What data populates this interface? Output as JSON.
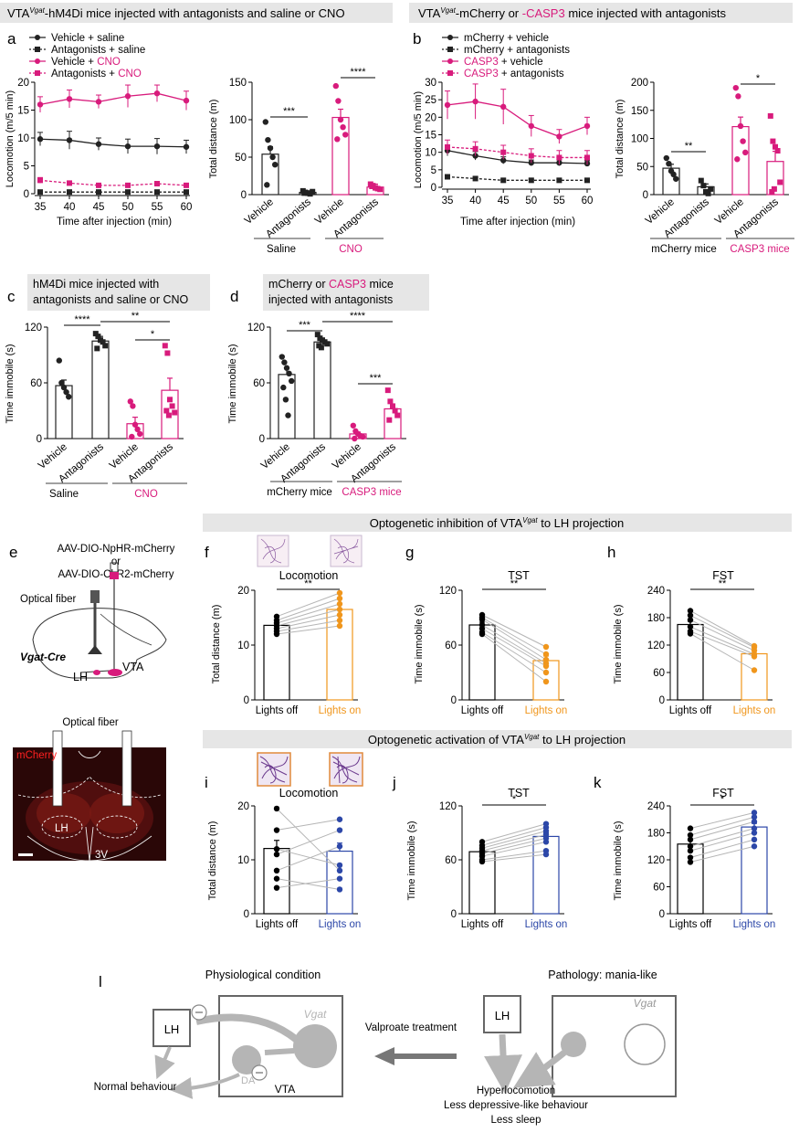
{
  "colors": {
    "magenta": "#d81b7c",
    "orange": "#f0961c",
    "blue": "#2c47a8",
    "grey": "#b5b5b5",
    "banner": "#e6e6e6",
    "dark": "#222222"
  },
  "banners": {
    "top_left_pre": "VTA",
    "top_left_sup": "Vgat",
    "top_left_post": "-hM4Di mice injected with antagonists and saline or CNO",
    "top_right_pre": "VTA",
    "top_right_sup": "Vgat",
    "top_right_mid": "-mCherry or ",
    "top_right_casp": "-CASP3",
    "top_right_post": " mice injected with antagonists",
    "c_line1": "hM4Di mice injected with",
    "c_line2": "antagonists and saline or CNO",
    "d_line1_pre": "mCherry or ",
    "d_line1_casp": "CASP3",
    "d_line1_post": " mice",
    "d_line2": "injected with antagonists",
    "opto_inh_pre": "Optogenetic inhibition of VTA",
    "opto_inh_sup": "Vgat",
    "opto_inh_post": " to LH projection",
    "opto_act_pre": "Optogenetic activation of VTA",
    "opto_act_sup": "Vgat",
    "opto_act_post": " to LH projection"
  },
  "panel_letters": {
    "a": "a",
    "b": "b",
    "c": "c",
    "d": "d",
    "e": "e",
    "f": "f",
    "g": "g",
    "h": "h",
    "i": "i",
    "j": "j",
    "k": "k",
    "l": "l"
  },
  "panel_a": {
    "legend": [
      "Vehicle + saline",
      "Antagonists + saline",
      "Vehicle + ",
      "Antagonists + "
    ],
    "legend_cno": "CNO",
    "ylabel": "Locomotion (m/5 min)",
    "xlabel": "Time after injection (min)",
    "bar_ylabel": "Total distance (m)",
    "bar_labels": [
      "Vehicle",
      "Antagonists",
      "Vehicle",
      "Antagonists"
    ],
    "group1": "Saline",
    "group2": "CNO",
    "sig": [
      "***",
      "****"
    ]
  },
  "panel_b": {
    "legend": [
      "mCherry + vehicle",
      "mCherry + antagonists",
      "CASP3",
      "CASP3"
    ],
    "legend_tail": [
      " + vehicle",
      " + antagonists"
    ],
    "ylabel": "Locomotion (m/5 min)",
    "xlabel": "Time after injection (min)",
    "bar_ylabel": "Total distance (m)",
    "bar_labels": [
      "Vehicle",
      "Antagonists",
      "Vehicle",
      "Antagonists"
    ],
    "group1": "mCherry mice",
    "group2": "CASP3 mice",
    "sig": [
      "**",
      "*"
    ]
  },
  "panel_c": {
    "ylabel": "Time immobile (s)",
    "bar_labels": [
      "Vehicle",
      "Antagonists",
      "Vehicle",
      "Antagonists"
    ],
    "group1": "Saline",
    "group2": "CNO",
    "sig": [
      "****",
      "**",
      "*"
    ]
  },
  "panel_d": {
    "ylabel": "Time immobile (s)",
    "bar_labels": [
      "Vehicle",
      "Antagonists",
      "Vehicle",
      "Antagonists"
    ],
    "group1": "mCherry mice",
    "group2": "CASP3 mice",
    "sig": [
      "***",
      "****",
      "***"
    ]
  },
  "panel_e": {
    "virus1": "AAV-DIO-NpHR-mCherry",
    "or": "or",
    "virus2": "AAV-DIO-ChR2-mCherry",
    "fiber": "Optical fiber",
    "cre": "Vgat-Cre",
    "lh": "LH",
    "vta": "VTA",
    "fiber2": "Optical fiber",
    "mcherry": "mCherry",
    "lh2": "LH",
    "v3": "3V"
  },
  "panel_f": {
    "title": "Locomotion",
    "ylabel": "Total distance (m)",
    "x": [
      "Lights off",
      "Lights on"
    ],
    "sig": "**"
  },
  "panel_g": {
    "title": "TST",
    "ylabel": "Time immobile (s)",
    "x": [
      "Lights off",
      "Lights on"
    ],
    "sig": "**"
  },
  "panel_h": {
    "title": "FST",
    "ylabel": "Time immobile (s)",
    "x": [
      "Lights off",
      "Lights on"
    ],
    "sig": "**"
  },
  "panel_i": {
    "title": "Locomotion",
    "ylabel": "Total distance (m)",
    "x": [
      "Lights off",
      "Lights on"
    ]
  },
  "panel_j": {
    "title": "TST",
    "ylabel": "Time immobile (s)",
    "x": [
      "Lights off",
      "Lights on"
    ],
    "sig": "*"
  },
  "panel_k": {
    "title": "FST",
    "ylabel": "Time immobile (s)",
    "x": [
      "Lights off",
      "Lights on"
    ],
    "sig": "*"
  },
  "panel_l": {
    "phys_title": "Physiological condition",
    "path_title": "Pathology: mania-like",
    "lh": "LH",
    "vgat": "Vgat",
    "da": "DA",
    "vta": "VTA",
    "normal": "Normal behaviour",
    "treatment": "Valproate treatment",
    "lh2": "LH",
    "vgat2": "Vgat",
    "effects": [
      "Hyperlocomotion",
      "Less depressive-like behaviour",
      "Less sleep"
    ]
  },
  "chart_data": [
    {
      "id": "a-line",
      "type": "line",
      "xlabel": "Time after injection (min)",
      "ylabel": "Locomotion (m/5 min)",
      "x": [
        35,
        40,
        45,
        50,
        55,
        60
      ],
      "xlim": [
        35,
        60
      ],
      "ylim": [
        0,
        20
      ],
      "yticks": [
        0,
        5,
        10,
        15,
        20
      ],
      "series": [
        {
          "name": "Vehicle + saline",
          "values": [
            9.8,
            9.6,
            8.9,
            8.5,
            8.5,
            8.4
          ],
          "err": [
            1.2,
            1.6,
            1.1,
            1.3,
            1.4,
            1.2
          ],
          "style": "solid",
          "marker": "circle",
          "color": "#222222"
        },
        {
          "name": "Antagonists + saline",
          "values": [
            0.3,
            0.3,
            0.3,
            0.3,
            0.3,
            0.3
          ],
          "err": [
            0.2,
            0.2,
            0.2,
            0.2,
            0.2,
            0.2
          ],
          "style": "dashed",
          "marker": "square",
          "color": "#222222"
        },
        {
          "name": "Vehicle + CNO",
          "values": [
            16.0,
            17.0,
            16.5,
            17.5,
            18.0,
            16.7
          ],
          "err": [
            1.4,
            1.6,
            1.2,
            2.0,
            1.5,
            1.7
          ],
          "style": "solid",
          "marker": "circle",
          "color": "#d81b7c"
        },
        {
          "name": "Antagonists + CNO",
          "values": [
            2.4,
            1.9,
            1.5,
            1.5,
            1.8,
            1.5
          ],
          "err": [
            0.5,
            0.4,
            0.3,
            0.3,
            0.4,
            0.3
          ],
          "style": "dashed",
          "marker": "square",
          "color": "#d81b7c"
        }
      ]
    },
    {
      "id": "a-bar",
      "type": "bar",
      "ylabel": "Total distance (m)",
      "ylim": [
        0,
        150
      ],
      "yticks": [
        0,
        50,
        100,
        150
      ],
      "categories": [
        "Vehicle",
        "Antagonists",
        "Vehicle",
        "Antagonists"
      ],
      "groups": [
        "Saline",
        "CNO"
      ],
      "values": [
        54,
        3,
        103,
        10
      ],
      "err": [
        10,
        2,
        11,
        4
      ],
      "points": [
        [
          97,
          73,
          62,
          50,
          40,
          13
        ],
        [
          5,
          3,
          2,
          1,
          4,
          2
        ],
        [
          145,
          125,
          100,
          90,
          80,
          74
        ],
        [
          14,
          12,
          9,
          8,
          7,
          11
        ]
      ]
    },
    {
      "id": "b-line",
      "type": "line",
      "xlabel": "Time after injection (min)",
      "ylabel": "Locomotion (m/5 min)",
      "x": [
        35,
        40,
        45,
        50,
        55,
        60
      ],
      "xlim": [
        35,
        60
      ],
      "ylim": [
        0,
        30
      ],
      "yticks": [
        0,
        5,
        10,
        15,
        20,
        25,
        30
      ],
      "series": [
        {
          "name": "mCherry + vehicle",
          "values": [
            10.5,
            9.0,
            7.7,
            7.0,
            7.0,
            6.8
          ],
          "err": [
            1.5,
            1.2,
            1.0,
            0.8,
            0.8,
            0.8
          ],
          "style": "solid",
          "marker": "circle",
          "color": "#222222"
        },
        {
          "name": "mCherry + antagonists",
          "values": [
            3.0,
            2.5,
            2.0,
            2.0,
            2.0,
            2.0
          ],
          "err": [
            0.5,
            0.4,
            0.3,
            0.3,
            0.3,
            0.3
          ],
          "style": "dashed",
          "marker": "square",
          "color": "#222222"
        },
        {
          "name": "CASP3 + vehicle",
          "values": [
            23.5,
            24.5,
            23.0,
            17.5,
            14.5,
            17.5
          ],
          "err": [
            4.0,
            5.0,
            5.0,
            3.0,
            2.0,
            2.5
          ],
          "style": "solid",
          "marker": "circle",
          "color": "#d81b7c"
        },
        {
          "name": "CASP3 + antagonists",
          "values": [
            11.5,
            11.0,
            10.0,
            9.0,
            8.5,
            8.5
          ],
          "err": [
            2.0,
            2.0,
            2.0,
            2.0,
            2.0,
            2.0
          ],
          "style": "dashed",
          "marker": "square",
          "color": "#d81b7c"
        }
      ]
    },
    {
      "id": "b-bar",
      "type": "bar",
      "ylabel": "Total distance (m)",
      "ylim": [
        0,
        200
      ],
      "yticks": [
        0,
        50,
        100,
        150,
        200
      ],
      "categories": [
        "Vehicle",
        "Antagonists",
        "Vehicle",
        "Antagonists"
      ],
      "groups": [
        "mCherry mice",
        "CASP3 mice"
      ],
      "values": [
        47,
        14,
        121,
        59
      ],
      "err": [
        7,
        5,
        17,
        18
      ],
      "points": [
        [
          65,
          55,
          42,
          36,
          28
        ],
        [
          25,
          16,
          5,
          2,
          10
        ],
        [
          190,
          175,
          122,
          95,
          75,
          63
        ],
        [
          140,
          95,
          85,
          78,
          22,
          5,
          10
        ]
      ]
    },
    {
      "id": "c-bar",
      "type": "bar",
      "ylabel": "Time immobile (s)",
      "ylim": [
        0,
        120
      ],
      "yticks": [
        0,
        60,
        120
      ],
      "categories": [
        "Vehicle",
        "Antagonists",
        "Vehicle",
        "Antagonists"
      ],
      "groups": [
        "Saline",
        "CNO"
      ],
      "values": [
        57,
        105,
        16,
        52
      ],
      "err": [
        6,
        5,
        7,
        13
      ],
      "points": [
        [
          84,
          60,
          55,
          50,
          45
        ],
        [
          113,
          110,
          106,
          104,
          100,
          97
        ],
        [
          40,
          35,
          15,
          10,
          5,
          2
        ],
        [
          100,
          92,
          42,
          35,
          28,
          30,
          25
        ]
      ]
    },
    {
      "id": "d-bar",
      "type": "bar",
      "ylabel": "Time immobile (s)",
      "ylim": [
        0,
        120
      ],
      "yticks": [
        0,
        60,
        120
      ],
      "categories": [
        "Vehicle",
        "Antagonists",
        "Vehicle",
        "Antagonists"
      ],
      "groups": [
        "mCherry mice",
        "CASP3 mice"
      ],
      "values": [
        69,
        104,
        5,
        32
      ],
      "err": [
        7,
        2,
        2,
        5
      ],
      "points": [
        [
          88,
          82,
          76,
          70,
          62,
          55,
          42,
          25
        ],
        [
          112,
          108,
          106,
          104,
          102,
          100,
          98
        ],
        [
          14,
          8,
          5,
          3,
          2,
          0
        ],
        [
          52,
          40,
          35,
          30,
          25,
          20
        ]
      ]
    },
    {
      "id": "f",
      "type": "paired-bar",
      "ylabel": "Total distance (m)",
      "ylim": [
        0,
        20
      ],
      "yticks": [
        0,
        10,
        20
      ],
      "categories": [
        "Lights off",
        "Lights on"
      ],
      "values": [
        13.6,
        16.5
      ],
      "err": [
        0.5,
        0.9
      ],
      "pairs": [
        [
          15.2,
          19.5
        ],
        [
          14.5,
          18.5
        ],
        [
          14.0,
          17.5
        ],
        [
          13.5,
          16.5
        ],
        [
          13.0,
          15.5
        ],
        [
          12.5,
          14.5
        ],
        [
          12.0,
          13.5
        ]
      ]
    },
    {
      "id": "g",
      "type": "paired-bar",
      "ylabel": "Time immobile (s)",
      "ylim": [
        0,
        120
      ],
      "yticks": [
        0,
        60,
        120
      ],
      "categories": [
        "Lights off",
        "Lights on"
      ],
      "values": [
        82,
        43
      ],
      "err": [
        3,
        5
      ],
      "pairs": [
        [
          93,
          58
        ],
        [
          90,
          50
        ],
        [
          88,
          44
        ],
        [
          82,
          40
        ],
        [
          78,
          37
        ],
        [
          74,
          30
        ],
        [
          72,
          20
        ]
      ]
    },
    {
      "id": "h",
      "type": "paired-bar",
      "ylabel": "Time immobile (s)",
      "ylim": [
        0,
        240
      ],
      "yticks": [
        0,
        60,
        120,
        180,
        240
      ],
      "categories": [
        "Lights off",
        "Lights on"
      ],
      "values": [
        165,
        101
      ],
      "err": [
        7,
        6
      ],
      "pairs": [
        [
          195,
          118
        ],
        [
          185,
          115
        ],
        [
          175,
          108
        ],
        [
          160,
          100
        ],
        [
          150,
          95
        ],
        [
          145,
          65
        ]
      ]
    },
    {
      "id": "i",
      "type": "paired-bar",
      "ylabel": "Total distance (m)",
      "ylim": [
        0,
        20
      ],
      "yticks": [
        0,
        10,
        20
      ],
      "categories": [
        "Lights off",
        "Lights on"
      ],
      "values": [
        12.1,
        11.6
      ],
      "err": [
        1.5,
        1.5
      ],
      "pairs": [
        [
          19.5,
          8.0
        ],
        [
          15.5,
          17.5
        ],
        [
          12.0,
          9.0
        ],
        [
          11.0,
          15.5
        ],
        [
          8.0,
          12.5
        ],
        [
          6.5,
          4.5
        ],
        [
          4.8,
          6.5
        ]
      ]
    },
    {
      "id": "j",
      "type": "paired-bar",
      "ylabel": "Time immobile (s)",
      "ylim": [
        0,
        120
      ],
      "yticks": [
        0,
        60,
        120
      ],
      "categories": [
        "Lights off",
        "Lights on"
      ],
      "values": [
        69,
        86
      ],
      "err": [
        3,
        4
      ],
      "pairs": [
        [
          80,
          100
        ],
        [
          76,
          96
        ],
        [
          73,
          92
        ],
        [
          70,
          88
        ],
        [
          67,
          84
        ],
        [
          64,
          80
        ],
        [
          60,
          70
        ],
        [
          58,
          66
        ]
      ]
    },
    {
      "id": "k",
      "type": "paired-bar",
      "ylabel": "Time immobile (s)",
      "ylim": [
        0,
        240
      ],
      "yticks": [
        0,
        60,
        120,
        180,
        240
      ],
      "categories": [
        "Lights off",
        "Lights on"
      ],
      "values": [
        155,
        193
      ],
      "err": [
        10,
        8
      ],
      "pairs": [
        [
          190,
          225
        ],
        [
          175,
          215
        ],
        [
          165,
          205
        ],
        [
          150,
          190
        ],
        [
          140,
          180
        ],
        [
          125,
          165
        ],
        [
          115,
          150
        ]
      ]
    }
  ]
}
